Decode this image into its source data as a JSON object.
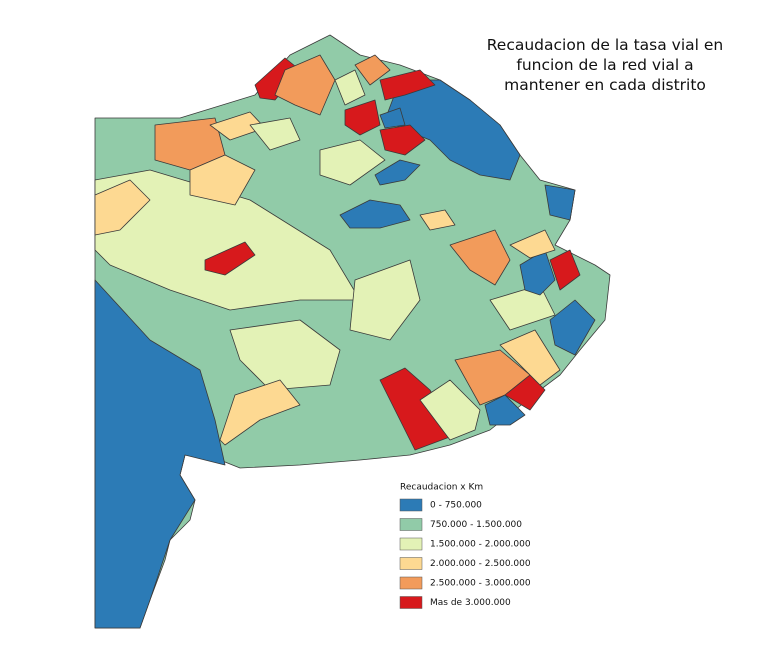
{
  "title": [
    "Recaudacion de la tasa vial en",
    "funcion de la red vial a",
    "mantener en cada distrito"
  ],
  "legend": {
    "title": "Recaudacion x Km",
    "items": [
      {
        "label": "0 - 750.000",
        "color": "#2c7bb6"
      },
      {
        "label": "750.000 - 1.500.000",
        "color": "#91cba8"
      },
      {
        "label": "1.500.000 - 2.000.000",
        "color": "#e3f2b6"
      },
      {
        "label": "2.000.000 - 2.500.000",
        "color": "#fdd992"
      },
      {
        "label": "2.500.000 - 3.000.000",
        "color": "#f29b5b"
      },
      {
        "label": "Mas de 3.000.000",
        "color": "#d7191c"
      }
    ]
  }
}
